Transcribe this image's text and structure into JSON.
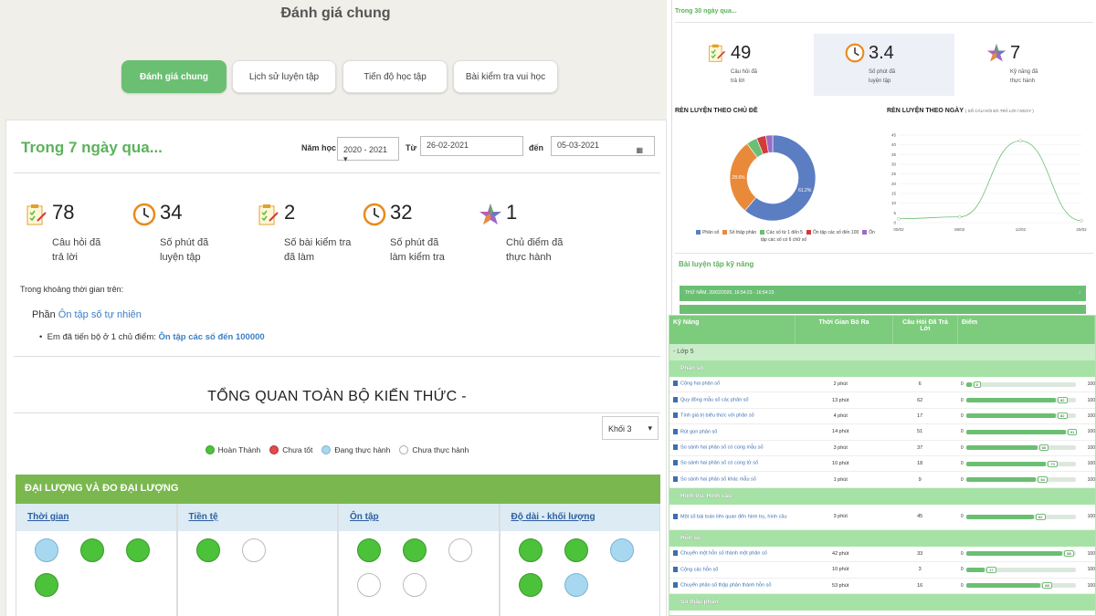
{
  "left": {
    "title": "Đánh giá chung",
    "tabs": [
      "Đánh giá chung",
      "Lịch sử luyện tập",
      "Tiến độ học tập",
      "Bài kiểm tra vui học"
    ],
    "range_title": "Trong 7 ngày qua...",
    "filters": {
      "school_year_label": "Năm học",
      "school_year_value": "2020 - 2021",
      "from_label": "Từ",
      "from_value": "26-02-2021",
      "to_label": "đến",
      "to_value": "05-03-2021"
    },
    "stats": [
      {
        "value": "78",
        "caption_1": "Câu hỏi đã",
        "caption_2": "trả lời",
        "icon": "checklist-icon"
      },
      {
        "value": "34",
        "caption_1": "Số phút đã",
        "caption_2": "luyện tập",
        "icon": "clock-icon"
      },
      {
        "value": "2",
        "caption_1": "Số bài kiểm tra",
        "caption_2": "đã làm",
        "icon": "checklist-icon"
      },
      {
        "value": "32",
        "caption_1": "Số phút đã",
        "caption_2": "làm kiểm tra",
        "icon": "clock-icon"
      },
      {
        "value": "1",
        "caption_1": "Chủ điểm đã",
        "caption_2": "thực hành",
        "icon": "star-icon"
      }
    ],
    "period_text": "Trong khoảng thời gian trên:",
    "section_prefix": "Phần",
    "section_link": "Ôn tập số tự nhiên",
    "bullet_prefix": "Em đã tiến bộ ở",
    "bullet_count": "1",
    "bullet_mid": "chủ điểm:",
    "bullet_topic": "Ôn tập các số đến 100000",
    "overview_title": "TỔNG QUAN TOÀN BỘ KIẾN THỨC -",
    "grade_select": "Khối 3",
    "legend": [
      {
        "label": "Hoàn Thành",
        "color": "#4cc13a"
      },
      {
        "label": "Chưa tốt",
        "color": "#e04b4b"
      },
      {
        "label": "Đang thực hành",
        "color": "#a8d8f0"
      },
      {
        "label": "Chưa thực hành",
        "color": "#ffffff"
      }
    ],
    "category_bar": "ĐẠI LƯỢNG VÀ ĐO ĐẠI LƯỢNG",
    "columns": [
      {
        "title": "Thời gian",
        "circles": [
          "b",
          "g",
          "g",
          "g"
        ]
      },
      {
        "title": "Tiền tệ",
        "circles": [
          "g",
          "w"
        ]
      },
      {
        "title": "Ôn tập",
        "circles": [
          "g",
          "g",
          "w",
          "w",
          "w"
        ]
      },
      {
        "title": "Độ dài - khối lượng",
        "circles": [
          "g",
          "g",
          "b",
          "g",
          "b"
        ]
      }
    ]
  },
  "right_top": {
    "title": "Trong 30 ngày qua...",
    "stats": [
      {
        "value": "49",
        "caption_1": "Câu hỏi đã",
        "caption_2": "trả lời"
      },
      {
        "value": "3.4",
        "caption_1": "Số phút đã",
        "caption_2": "luyện tập"
      },
      {
        "value": "7",
        "caption_1": "Kỹ năng đã",
        "caption_2": "thực hành"
      }
    ],
    "chart1_title": "RÈN LUYỆN THEO CHỦ ĐỀ",
    "chart2_title": "RÈN LUYỆN THEO NGÀY",
    "chart2_subtitle": "( SỐ CÂU HỎI ĐÃ TRẢ LỜI / NGÀY )",
    "skill_title": "Bài luyện tập kỹ năng",
    "green_rows": [
      "THỨ NĂM, 20/02/2020, 16:54:23 - 16:54:23"
    ]
  },
  "chart_data": [
    {
      "type": "pie",
      "title": "RÈN LUYỆN THEO CHỦ ĐỀ",
      "labels": [
        "Phân số",
        "Số thập phân",
        "Các số từ 1 đến 5",
        "Ôn tập các số đến 100",
        "Ôn tập các số có 6 chữ số"
      ],
      "values": [
        61.2,
        28.6,
        4.1,
        3.5,
        2.6
      ],
      "colors": [
        "#5b7ec3",
        "#e98a3a",
        "#6bbf73",
        "#d23b3b",
        "#9b6bc7"
      ],
      "legend": "bottom"
    },
    {
      "type": "line",
      "title": "RÈN LUYỆN THEO NGÀY",
      "subtitle": "( SỐ CÂU HỎI ĐÃ TRẢ LỜI / NGÀY )",
      "x": [
        "00/02",
        "08/02",
        "12/02",
        "20/02"
      ],
      "y": [
        2,
        3,
        42,
        1
      ],
      "ylim": [
        0,
        45
      ],
      "yticks": [
        0,
        5,
        10,
        15,
        20,
        25,
        30,
        35,
        40,
        45
      ],
      "color": "#6bbf73",
      "grid": true
    }
  ],
  "table": {
    "headers": [
      "Kỹ Năng",
      "Thời Gian Bỏ Ra",
      "Câu Hỏi Đã Trả Lời",
      "Điểm"
    ],
    "group": "- Lớp 5",
    "sections": [
      {
        "title": "Phân số",
        "rows": [
          {
            "skill": "Cộng hai phân số",
            "time": "2 phút",
            "answered": "6",
            "score": 5
          },
          {
            "skill": "Quy đồng mẫu số các phân số",
            "time": "13 phút",
            "answered": "62",
            "score": 82
          },
          {
            "skill": "Tính giá trị biểu thức với phân số",
            "time": "4 phút",
            "answered": "17",
            "score": 82
          },
          {
            "skill": "Rút gọn phân số",
            "time": "14 phút",
            "answered": "51",
            "score": 91
          },
          {
            "skill": "So sánh hai phân số có cùng mẫu số",
            "time": "3 phút",
            "answered": "37",
            "score": 65
          },
          {
            "skill": "So sánh hai phân số có cùng tử số",
            "time": "10 phút",
            "answered": "18",
            "score": 73
          },
          {
            "skill": "So sánh hai phân số khác mẫu số",
            "time": "1 phút",
            "answered": "9",
            "score": 64
          }
        ]
      },
      {
        "title": "Hình trụ. Hình cầu",
        "rows": [
          {
            "skill": "Một số bài toán liên quan đến hình trụ, hình cầu",
            "time": "3 phút",
            "answered": "45",
            "score": 62
          }
        ]
      },
      {
        "title": "Hỗn số",
        "rows": [
          {
            "skill": "Chuyển một hỗn số thành một phân số",
            "time": "42 phút",
            "answered": "33",
            "score": 88
          },
          {
            "skill": "Cộng các hỗn số",
            "time": "10 phút",
            "answered": "3",
            "score": 17
          },
          {
            "skill": "Chuyển phân số thập phân thành hỗn số",
            "time": "53 phút",
            "answered": "16",
            "score": 68
          }
        ]
      },
      {
        "title": "Số thập phân",
        "rows": []
      }
    ],
    "score_min": "0",
    "score_max": "100"
  }
}
